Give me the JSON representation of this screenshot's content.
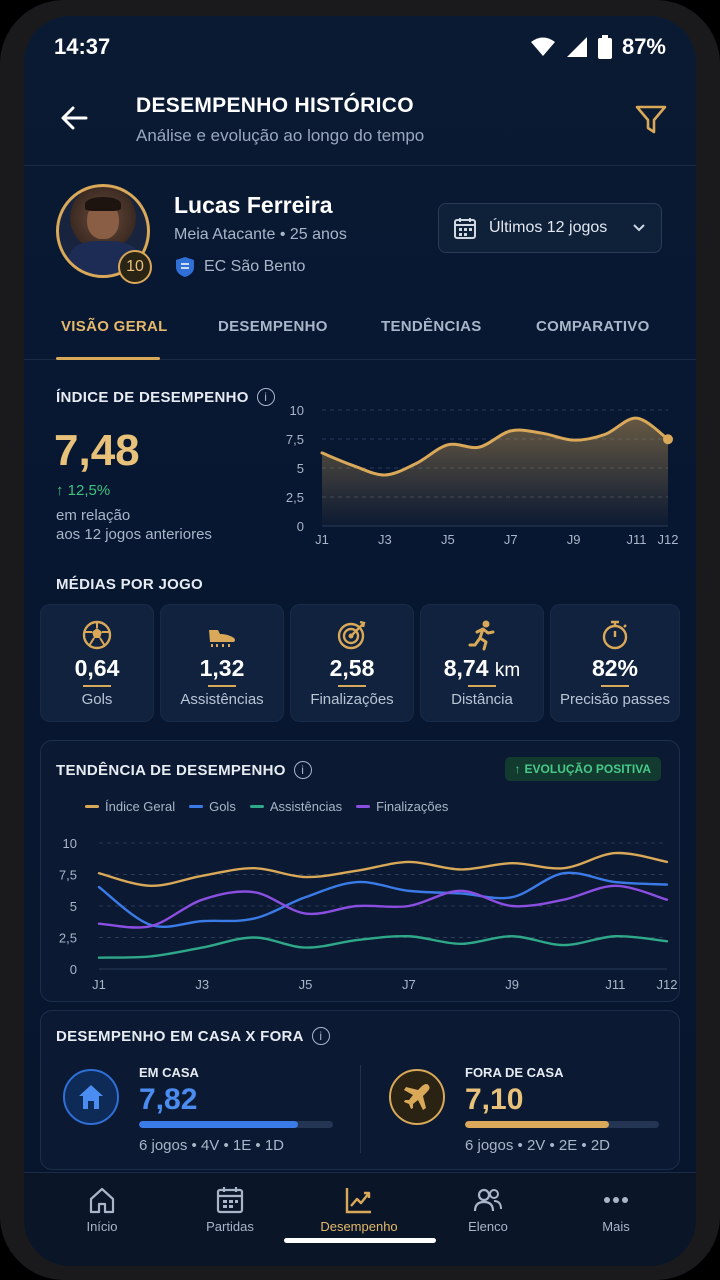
{
  "status": {
    "time": "14:37",
    "battery": "87%"
  },
  "header": {
    "title": "DESEMPENHO HISTÓRICO",
    "subtitle": "Análise e evolução ao longo do tempo"
  },
  "player": {
    "name": "Lucas Ferreira",
    "info": "Meia Atacante • 25 anos",
    "club": "EC São Bento",
    "number": "10"
  },
  "range_select": {
    "label": "Últimos 12 jogos"
  },
  "tabs": [
    {
      "label": "VISÃO GERAL"
    },
    {
      "label": "DESEMPENHO"
    },
    {
      "label": "TENDÊNCIAS"
    },
    {
      "label": "COMPARATIVO"
    }
  ],
  "index": {
    "title": "ÍNDICE DE DESEMPENHO",
    "value": "7,48",
    "delta": "12,5%",
    "note_line1": "em relação",
    "note_line2": "aos 12 jogos anteriores"
  },
  "averages": {
    "title": "MÉDIAS POR JOGO",
    "items": [
      {
        "icon": "soccer-ball-icon",
        "value": "0,64",
        "unit": "",
        "label": "Gols"
      },
      {
        "icon": "boot-icon",
        "value": "1,32",
        "unit": "",
        "label": "Assistências"
      },
      {
        "icon": "target-icon",
        "value": "2,58",
        "unit": "",
        "label": "Finalizações"
      },
      {
        "icon": "runner-icon",
        "value": "8,74",
        "unit": "km",
        "label": "Distância"
      },
      {
        "icon": "stopwatch-icon",
        "value": "82%",
        "unit": "",
        "label": "Precisão passes"
      }
    ]
  },
  "trend": {
    "title": "TENDÊNCIA DE DESEMPENHO",
    "badge": "EVOLUÇÃO POSITIVA"
  },
  "home_away": {
    "title": "DESEMPENHO EM CASA X FORA",
    "home": {
      "label": "EM CASA",
      "value": "7,82",
      "fill": 0.82,
      "sub": "6 jogos • 4V • 1E • 1D"
    },
    "away": {
      "label": "FORA DE CASA",
      "value": "7,10",
      "fill": 0.74,
      "sub": "6 jogos • 2V • 2E • 2D"
    }
  },
  "nav": [
    {
      "label": "Início",
      "icon": "home-icon"
    },
    {
      "label": "Partidas",
      "icon": "calendar-icon"
    },
    {
      "label": "Desempenho",
      "icon": "chart-icon"
    },
    {
      "label": "Elenco",
      "icon": "people-icon"
    },
    {
      "label": "Mais",
      "icon": "more-icon"
    }
  ],
  "colors": {
    "accent": "#d9a858",
    "goals": "#3b7be8",
    "assists": "#2fa88a",
    "shots": "#8a4ee0",
    "positive": "#3ec27e"
  },
  "chart_data": [
    {
      "type": "area",
      "x": [
        "J1",
        "J2",
        "J3",
        "J4",
        "J5",
        "J6",
        "J7",
        "J8",
        "J9",
        "J10",
        "J11",
        "J12"
      ],
      "xticks": [
        "J1",
        "J3",
        "J5",
        "J7",
        "J9",
        "J11",
        "J12"
      ],
      "yticks": [
        "0",
        "2,5",
        "5",
        "7,5",
        "10"
      ],
      "ylim": [
        0,
        10
      ],
      "series": [
        {
          "values": [
            6.3,
            5.2,
            4.4,
            5.4,
            7.0,
            6.8,
            8.2,
            8.0,
            7.4,
            7.9,
            9.3,
            7.48
          ]
        }
      ]
    },
    {
      "type": "line",
      "x": [
        "J1",
        "J2",
        "J3",
        "J4",
        "J5",
        "J6",
        "J7",
        "J8",
        "J9",
        "J10",
        "J11",
        "J12"
      ],
      "xticks": [
        "J1",
        "J3",
        "J5",
        "J7",
        "J9",
        "J11",
        "J12"
      ],
      "yticks": [
        "0",
        "2,5",
        "5",
        "7,5",
        "10"
      ],
      "ylim": [
        0,
        10
      ],
      "legend": "top-left",
      "series": [
        {
          "name": "Índice Geral",
          "color": "#d9a858",
          "values": [
            7.6,
            6.6,
            7.4,
            8.0,
            7.3,
            7.8,
            8.5,
            7.9,
            8.4,
            8.0,
            9.2,
            8.5
          ]
        },
        {
          "name": "Gols",
          "color": "#3b7be8",
          "values": [
            6.5,
            3.5,
            3.8,
            4.0,
            5.7,
            6.9,
            6.2,
            6.0,
            5.7,
            7.6,
            6.9,
            6.7
          ]
        },
        {
          "name": "Assistências",
          "color": "#2fa88a",
          "values": [
            0.9,
            1.0,
            1.7,
            2.5,
            1.7,
            2.3,
            2.6,
            2.0,
            2.6,
            1.9,
            2.6,
            2.2
          ]
        },
        {
          "name": "Finalizações",
          "color": "#8a4ee0",
          "values": [
            3.6,
            3.4,
            5.5,
            6.1,
            4.4,
            5.0,
            5.0,
            6.2,
            5.0,
            5.5,
            6.6,
            5.5
          ]
        }
      ]
    }
  ]
}
